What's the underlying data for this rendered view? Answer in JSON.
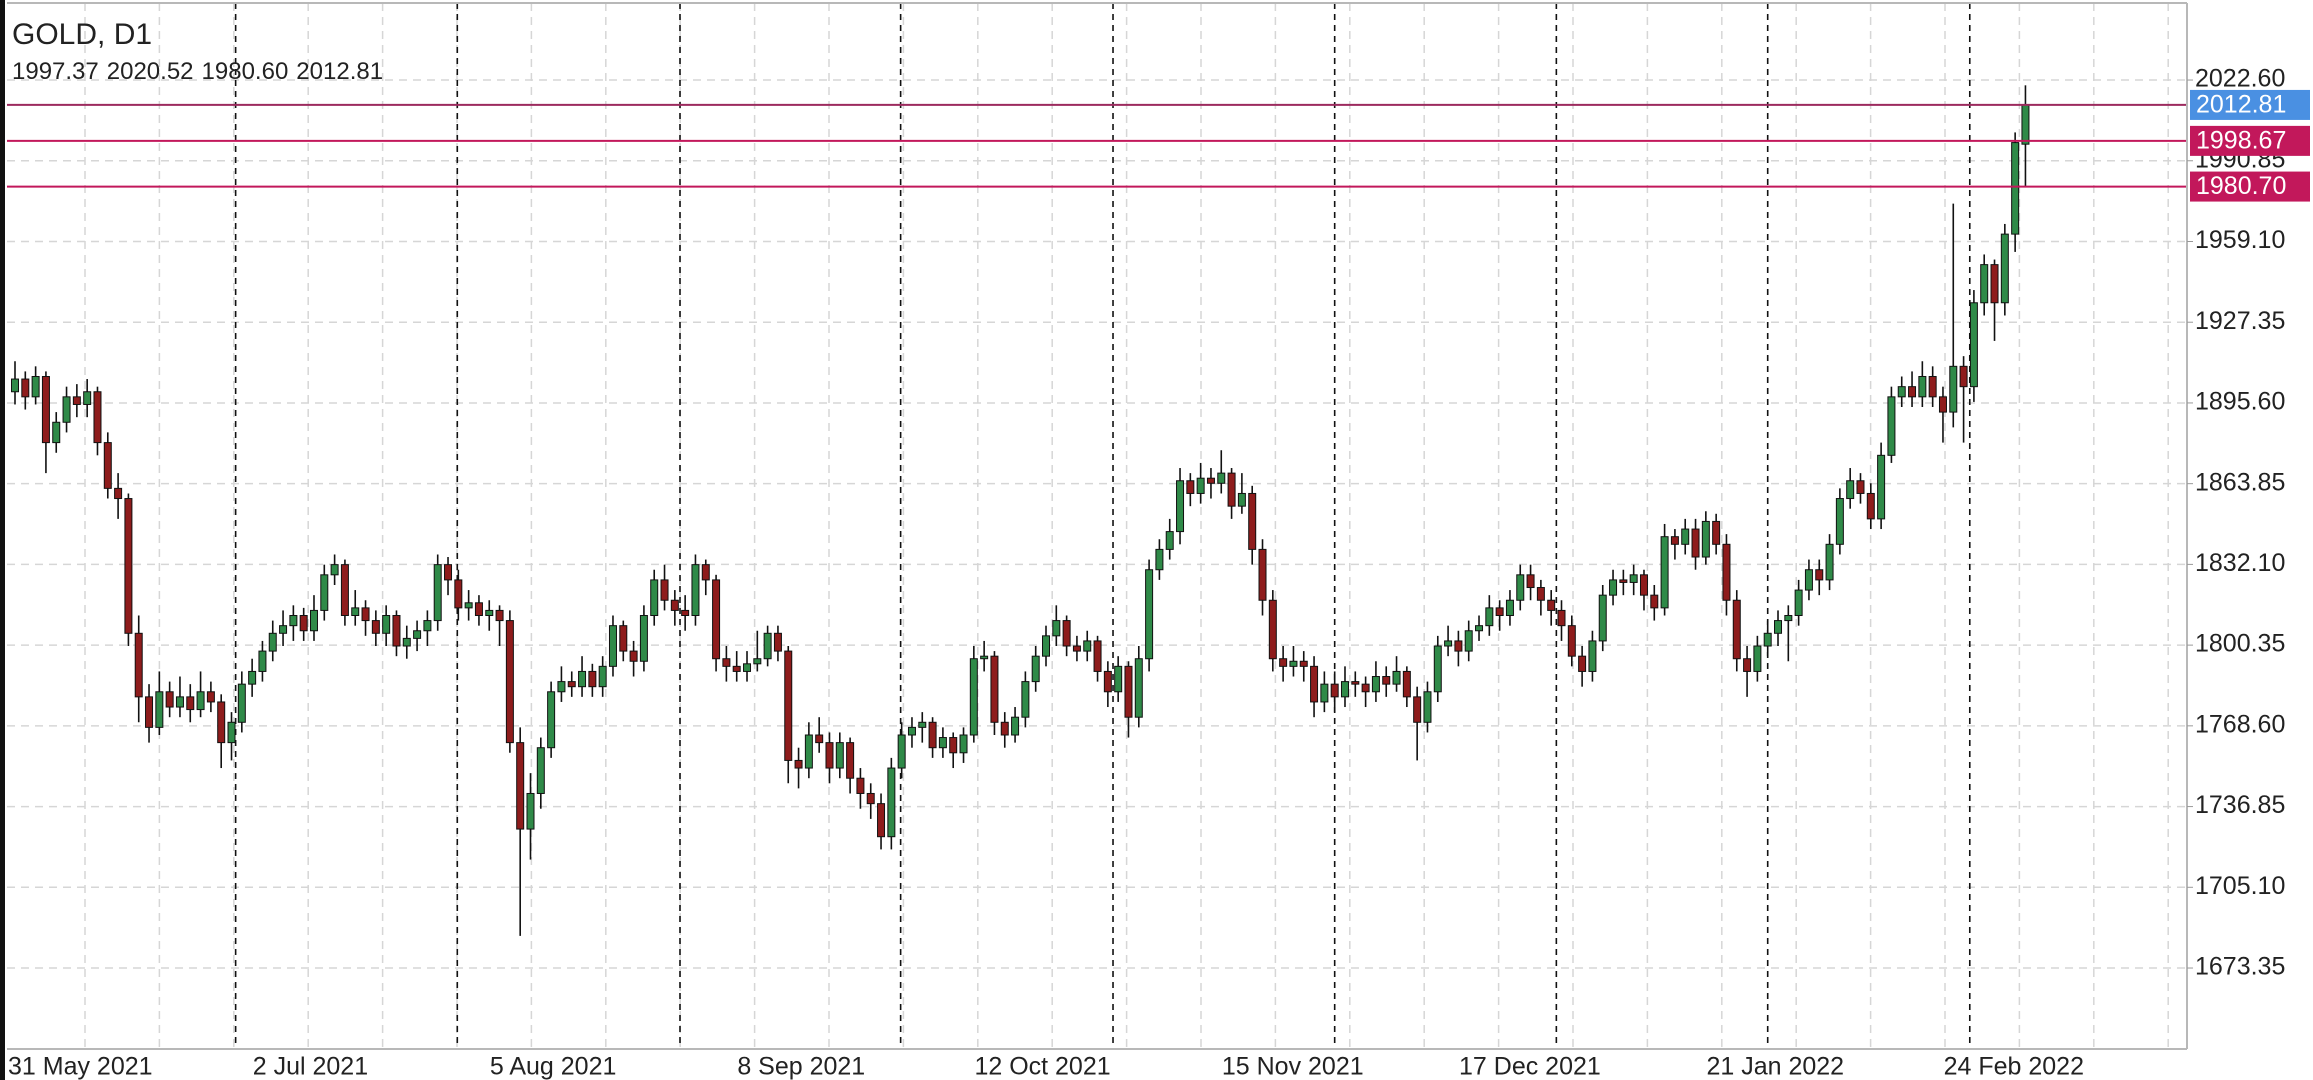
{
  "chart_data": {
    "type": "candlestick",
    "title": "GOLD, D1",
    "header_labels": [
      "1997.37",
      "2020.52",
      "1980.60",
      "2012.81"
    ],
    "ylim": [
      1641.5,
      2052.9
    ],
    "yticks": [
      {
        "value": 2022.6,
        "label": "2022.60"
      },
      1990.85,
      {
        "value": 1959.1,
        "label": "1959.10"
      },
      1927.35,
      {
        "value": 1895.6,
        "label": "1895.60"
      },
      1863.85,
      {
        "value": 1832.1,
        "label": "1832.10"
      },
      1800.35,
      {
        "value": 1768.6,
        "label": "1768.60"
      },
      1736.85,
      {
        "value": 1705.1,
        "label": "1705.10"
      },
      1673.35
    ],
    "grid": true,
    "up_color": "#2f8a48",
    "down_color": "#8e1c1c",
    "wick_color": "#111111",
    "last_price_color": "#4a90e2",
    "price_lines": [
      {
        "value": 1998.67,
        "color": "#c2185b"
      },
      {
        "value": 1980.7,
        "label": "1980.70",
        "color": "#c2185b"
      }
    ],
    "categories": [
      "31 May 2021",
      null,
      null,
      null,
      null,
      null,
      null,
      null,
      null,
      null,
      null,
      null,
      null,
      null,
      null,
      null,
      null,
      null,
      null,
      null,
      null,
      null,
      null,
      null,
      null,
      "2 Jul 2021",
      null,
      null,
      null,
      null,
      null,
      null,
      null,
      null,
      null,
      null,
      null,
      null,
      null,
      null,
      null,
      null,
      null,
      null,
      null,
      null,
      null,
      null,
      "5 Aug 2021",
      null,
      null,
      null,
      null,
      null,
      null,
      null,
      null,
      null,
      null,
      null,
      null,
      null,
      null,
      null,
      null,
      null,
      null,
      null,
      null,
      null,
      null,
      null,
      "8 Sep 2021",
      null,
      null,
      null,
      null,
      null,
      null,
      null,
      null,
      null,
      null,
      null,
      null,
      null,
      null,
      null,
      null,
      null,
      null,
      null,
      null,
      null,
      null,
      "12 Oct 2021",
      null,
      null,
      null,
      null,
      null,
      null,
      null,
      null,
      null,
      null,
      null,
      null,
      null,
      null,
      null,
      null,
      null,
      null,
      null,
      null,
      null,
      null,
      null,
      "15 Nov 2021",
      null,
      null,
      null,
      null,
      null,
      null,
      null,
      null,
      null,
      null,
      null,
      null,
      null,
      null,
      null,
      null,
      null,
      null,
      null,
      null,
      null,
      null,
      "17 Dec 2021",
      null,
      null,
      null,
      null,
      null,
      null,
      null,
      null,
      null,
      null,
      null,
      null,
      null,
      null,
      null,
      null,
      null,
      null,
      null,
      null,
      null,
      null,
      null,
      "21 Jan 2022",
      null,
      null,
      null,
      null,
      null,
      null,
      null,
      null,
      null,
      null,
      null,
      null,
      null,
      null,
      null,
      null,
      null,
      null,
      null,
      null,
      null,
      null,
      "24 Feb 2022",
      null,
      null,
      null,
      null,
      null,
      null
    ],
    "candles": [
      [
        1900,
        1912,
        1895,
        1905
      ],
      [
        1905,
        1908,
        1893,
        1898
      ],
      [
        1898,
        1910,
        1895,
        1906
      ],
      [
        1906,
        1908,
        1868,
        1880
      ],
      [
        1880,
        1892,
        1876,
        1888
      ],
      [
        1888,
        1902,
        1884,
        1898
      ],
      [
        1898,
        1903,
        1890,
        1895
      ],
      [
        1895,
        1905,
        1890,
        1900
      ],
      [
        1900,
        1902,
        1875,
        1880
      ],
      [
        1880,
        1884,
        1858,
        1862
      ],
      [
        1862,
        1868,
        1850,
        1858
      ],
      [
        1858,
        1860,
        1800,
        1805
      ],
      [
        1805,
        1812,
        1770,
        1780
      ],
      [
        1780,
        1785,
        1762,
        1768
      ],
      [
        1768,
        1790,
        1765,
        1782
      ],
      [
        1782,
        1786,
        1772,
        1776
      ],
      [
        1776,
        1788,
        1772,
        1780
      ],
      [
        1780,
        1785,
        1770,
        1775
      ],
      [
        1775,
        1790,
        1772,
        1782
      ],
      [
        1782,
        1786,
        1774,
        1778
      ],
      [
        1778,
        1781,
        1752,
        1762
      ],
      [
        1762,
        1774,
        1755,
        1770
      ],
      [
        1770,
        1790,
        1766,
        1785
      ],
      [
        1785,
        1795,
        1780,
        1790
      ],
      [
        1790,
        1802,
        1786,
        1798
      ],
      [
        1798,
        1810,
        1794,
        1805
      ],
      [
        1805,
        1814,
        1800,
        1808
      ],
      [
        1808,
        1816,
        1802,
        1812
      ],
      [
        1812,
        1815,
        1802,
        1806
      ],
      [
        1806,
        1820,
        1802,
        1814
      ],
      [
        1814,
        1832,
        1810,
        1828
      ],
      [
        1828,
        1836,
        1824,
        1832
      ],
      [
        1832,
        1834,
        1808,
        1812
      ],
      [
        1812,
        1822,
        1808,
        1815
      ],
      [
        1815,
        1818,
        1804,
        1810
      ],
      [
        1810,
        1814,
        1800,
        1805
      ],
      [
        1805,
        1816,
        1800,
        1812
      ],
      [
        1812,
        1814,
        1796,
        1800
      ],
      [
        1800,
        1808,
        1795,
        1803
      ],
      [
        1803,
        1810,
        1798,
        1806
      ],
      [
        1806,
        1814,
        1800,
        1810
      ],
      [
        1810,
        1836,
        1806,
        1832
      ],
      [
        1832,
        1835,
        1820,
        1826
      ],
      [
        1826,
        1830,
        1810,
        1815
      ],
      [
        1815,
        1822,
        1810,
        1817
      ],
      [
        1817,
        1820,
        1808,
        1812
      ],
      [
        1812,
        1818,
        1806,
        1814
      ],
      [
        1814,
        1816,
        1800,
        1810
      ],
      [
        1810,
        1814,
        1758,
        1762
      ],
      [
        1762,
        1768,
        1686,
        1728
      ],
      [
        1728,
        1750,
        1716,
        1742
      ],
      [
        1742,
        1764,
        1736,
        1760
      ],
      [
        1760,
        1786,
        1756,
        1782
      ],
      [
        1782,
        1792,
        1778,
        1786
      ],
      [
        1786,
        1790,
        1780,
        1784
      ],
      [
        1784,
        1796,
        1780,
        1790
      ],
      [
        1790,
        1793,
        1780,
        1784
      ],
      [
        1784,
        1796,
        1780,
        1792
      ],
      [
        1792,
        1812,
        1788,
        1808
      ],
      [
        1808,
        1810,
        1794,
        1798
      ],
      [
        1798,
        1802,
        1788,
        1794
      ],
      [
        1794,
        1816,
        1790,
        1812
      ],
      [
        1812,
        1830,
        1808,
        1826
      ],
      [
        1826,
        1832,
        1814,
        1818
      ],
      [
        1818,
        1822,
        1808,
        1814
      ],
      [
        1814,
        1820,
        1806,
        1812
      ],
      [
        1812,
        1836,
        1808,
        1832
      ],
      [
        1832,
        1834,
        1820,
        1826
      ],
      [
        1826,
        1828,
        1790,
        1795
      ],
      [
        1795,
        1800,
        1786,
        1792
      ],
      [
        1792,
        1798,
        1786,
        1790
      ],
      [
        1790,
        1798,
        1786,
        1793
      ],
      [
        1793,
        1806,
        1790,
        1795
      ],
      [
        1795,
        1808,
        1792,
        1805
      ],
      [
        1805,
        1808,
        1794,
        1798
      ],
      [
        1798,
        1800,
        1746,
        1755
      ],
      [
        1755,
        1760,
        1744,
        1752
      ],
      [
        1752,
        1770,
        1748,
        1765
      ],
      [
        1765,
        1772,
        1758,
        1762
      ],
      [
        1762,
        1766,
        1746,
        1752
      ],
      [
        1752,
        1766,
        1748,
        1762
      ],
      [
        1762,
        1764,
        1742,
        1748
      ],
      [
        1748,
        1752,
        1736,
        1742
      ],
      [
        1742,
        1746,
        1732,
        1738
      ],
      [
        1738,
        1742,
        1720,
        1725
      ],
      [
        1725,
        1756,
        1720,
        1752
      ],
      [
        1752,
        1770,
        1748,
        1765
      ],
      [
        1765,
        1772,
        1760,
        1768
      ],
      [
        1768,
        1774,
        1762,
        1770
      ],
      [
        1770,
        1772,
        1756,
        1760
      ],
      [
        1760,
        1768,
        1756,
        1764
      ],
      [
        1764,
        1766,
        1752,
        1758
      ],
      [
        1758,
        1768,
        1754,
        1765
      ],
      [
        1765,
        1800,
        1762,
        1795
      ],
      [
        1795,
        1802,
        1790,
        1796
      ],
      [
        1796,
        1798,
        1765,
        1770
      ],
      [
        1770,
        1774,
        1760,
        1765
      ],
      [
        1765,
        1776,
        1762,
        1772
      ],
      [
        1772,
        1790,
        1768,
        1786
      ],
      [
        1786,
        1800,
        1782,
        1796
      ],
      [
        1796,
        1808,
        1792,
        1804
      ],
      [
        1804,
        1816,
        1800,
        1810
      ],
      [
        1810,
        1812,
        1796,
        1800
      ],
      [
        1800,
        1804,
        1794,
        1798
      ],
      [
        1798,
        1806,
        1794,
        1802
      ],
      [
        1802,
        1804,
        1786,
        1790
      ],
      [
        1790,
        1794,
        1776,
        1782
      ],
      [
        1782,
        1796,
        1778,
        1792
      ],
      [
        1792,
        1794,
        1764,
        1772
      ],
      [
        1772,
        1800,
        1768,
        1795
      ],
      [
        1795,
        1834,
        1790,
        1830
      ],
      [
        1830,
        1842,
        1826,
        1838
      ],
      [
        1838,
        1850,
        1834,
        1845
      ],
      [
        1845,
        1870,
        1840,
        1865
      ],
      [
        1865,
        1868,
        1855,
        1860
      ],
      [
        1860,
        1872,
        1856,
        1866
      ],
      [
        1866,
        1870,
        1858,
        1864
      ],
      [
        1864,
        1877,
        1860,
        1868
      ],
      [
        1868,
        1870,
        1850,
        1855
      ],
      [
        1855,
        1868,
        1852,
        1860
      ],
      [
        1860,
        1863,
        1832,
        1838
      ],
      [
        1838,
        1842,
        1812,
        1818
      ],
      [
        1818,
        1822,
        1790,
        1795
      ],
      [
        1795,
        1800,
        1786,
        1792
      ],
      [
        1792,
        1800,
        1788,
        1794
      ],
      [
        1794,
        1798,
        1786,
        1792
      ],
      [
        1792,
        1796,
        1772,
        1778
      ],
      [
        1778,
        1790,
        1774,
        1785
      ],
      [
        1785,
        1790,
        1774,
        1780
      ],
      [
        1780,
        1792,
        1776,
        1786
      ],
      [
        1786,
        1790,
        1780,
        1785
      ],
      [
        1785,
        1788,
        1776,
        1782
      ],
      [
        1782,
        1794,
        1778,
        1788
      ],
      [
        1788,
        1792,
        1780,
        1785
      ],
      [
        1785,
        1796,
        1782,
        1790
      ],
      [
        1790,
        1792,
        1776,
        1780
      ],
      [
        1780,
        1784,
        1755,
        1770
      ],
      [
        1770,
        1786,
        1766,
        1782
      ],
      [
        1782,
        1804,
        1778,
        1800
      ],
      [
        1800,
        1808,
        1796,
        1802
      ],
      [
        1802,
        1806,
        1792,
        1798
      ],
      [
        1798,
        1810,
        1794,
        1806
      ],
      [
        1806,
        1812,
        1802,
        1808
      ],
      [
        1808,
        1820,
        1804,
        1815
      ],
      [
        1815,
        1818,
        1806,
        1812
      ],
      [
        1812,
        1822,
        1808,
        1818
      ],
      [
        1818,
        1832,
        1814,
        1828
      ],
      [
        1828,
        1832,
        1818,
        1823
      ],
      [
        1823,
        1826,
        1812,
        1818
      ],
      [
        1818,
        1822,
        1808,
        1814
      ],
      [
        1814,
        1818,
        1802,
        1808
      ],
      [
        1808,
        1812,
        1792,
        1796
      ],
      [
        1796,
        1800,
        1784,
        1790
      ],
      [
        1790,
        1806,
        1786,
        1802
      ],
      [
        1802,
        1824,
        1798,
        1820
      ],
      [
        1820,
        1830,
        1816,
        1826
      ],
      [
        1826,
        1830,
        1820,
        1825
      ],
      [
        1825,
        1832,
        1820,
        1828
      ],
      [
        1828,
        1830,
        1814,
        1820
      ],
      [
        1820,
        1824,
        1810,
        1815
      ],
      [
        1815,
        1848,
        1812,
        1843
      ],
      [
        1843,
        1846,
        1834,
        1840
      ],
      [
        1840,
        1850,
        1836,
        1846
      ],
      [
        1846,
        1850,
        1830,
        1835
      ],
      [
        1835,
        1853,
        1832,
        1849
      ],
      [
        1849,
        1852,
        1836,
        1840
      ],
      [
        1840,
        1844,
        1812,
        1818
      ],
      [
        1818,
        1822,
        1790,
        1795
      ],
      [
        1795,
        1800,
        1780,
        1790
      ],
      [
        1790,
        1804,
        1786,
        1800
      ],
      [
        1800,
        1810,
        1796,
        1805
      ],
      [
        1805,
        1814,
        1800,
        1810
      ],
      [
        1810,
        1816,
        1794,
        1812
      ],
      [
        1812,
        1826,
        1808,
        1822
      ],
      [
        1822,
        1834,
        1818,
        1830
      ],
      [
        1830,
        1834,
        1820,
        1826
      ],
      [
        1826,
        1844,
        1822,
        1840
      ],
      [
        1840,
        1862,
        1836,
        1858
      ],
      [
        1858,
        1870,
        1854,
        1865
      ],
      [
        1865,
        1868,
        1856,
        1860
      ],
      [
        1860,
        1864,
        1846,
        1850
      ],
      [
        1850,
        1880,
        1846,
        1875
      ],
      [
        1875,
        1902,
        1872,
        1898
      ],
      [
        1898,
        1906,
        1894,
        1902
      ],
      [
        1902,
        1908,
        1894,
        1898
      ],
      [
        1898,
        1912,
        1894,
        1906
      ],
      [
        1906,
        1910,
        1894,
        1898
      ],
      [
        1898,
        1902,
        1880,
        1892
      ],
      [
        1892,
        1974,
        1886,
        1910
      ],
      [
        1910,
        1914,
        1880,
        1902
      ],
      [
        1902,
        1940,
        1896,
        1935
      ],
      [
        1935,
        1954,
        1930,
        1950
      ],
      [
        1950,
        1952,
        1920,
        1935
      ],
      [
        1935,
        1966,
        1930,
        1962
      ],
      [
        1962,
        2002,
        1955,
        1998
      ],
      [
        1997.37,
        2020.52,
        1980.6,
        2012.81
      ]
    ]
  }
}
